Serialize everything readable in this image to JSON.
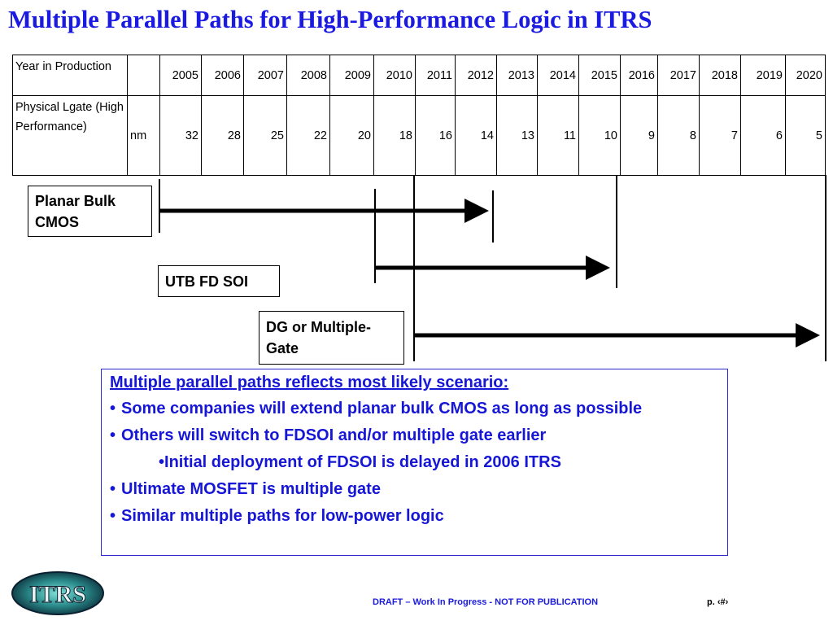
{
  "title": "Multiple Parallel Paths for High-Performance Logic in ITRS",
  "table": {
    "row1_label": "Year in Production",
    "row2_label": "Physical Lgate (High Performance)",
    "row2_unit": "nm",
    "years": [
      "2005",
      "2006",
      "2007",
      "2008",
      "2009",
      "2010",
      "2011",
      "2012",
      "2013",
      "2014",
      "2015",
      "2016",
      "2017",
      "2018",
      "2019",
      "2020"
    ],
    "values": [
      "32",
      "28",
      "25",
      "22",
      "20",
      "18",
      "16",
      "14",
      "13",
      "11",
      "10",
      "9",
      "8",
      "7",
      "6",
      "5"
    ]
  },
  "paths": {
    "planar": {
      "label": "Planar Bulk CMOS"
    },
    "utb": {
      "label": "UTB FD SOI"
    },
    "dg": {
      "label": "DG or Multiple-Gate"
    }
  },
  "bullets": {
    "heading": "Multiple parallel paths reflects most likely scenario:",
    "b1": "Some companies will extend planar bulk CMOS as long as possible",
    "b2": "Others will switch to FDSOI and/or multiple gate earlier",
    "b3": "Initial deployment of FDSOI is delayed in 2006 ITRS",
    "b4": "Ultimate MOSFET is multiple gate",
    "b5": "Similar multiple paths for low-power logic",
    "bullet_char": "•"
  },
  "logo": {
    "text": "ITRS"
  },
  "footer": {
    "draft": "DRAFT – Work In Progress - NOT FOR PUBLICATION",
    "page": "p. ‹#›"
  },
  "colors": {
    "title": "#1a1ae0",
    "bullets": "#1616d6",
    "box_border": "#2a2ad0"
  }
}
